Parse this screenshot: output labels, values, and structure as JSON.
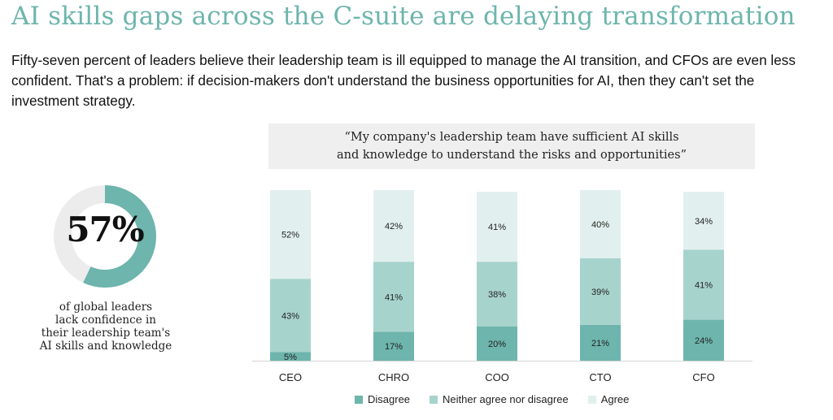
{
  "title": "AI skills gaps across the C-suite are delaying transformation",
  "intro": "Fifty-seven percent of leaders believe their leadership team is ill equipped to manage the AI transition, and CFOs are even less confident. That's a problem: if decision-makers don't understand the business opportunities for AI, then they can't set the investment strategy.",
  "quote": {
    "line1": "“My company's leadership team have sufficient AI skills",
    "line2": "and knowledge to understand the risks and opportunities”"
  },
  "stat": {
    "value": 57,
    "label": "57%",
    "caption": [
      "of global leaders",
      "lack confidence in",
      "their leadership team's",
      "AI skills and knowledge"
    ],
    "colors": {
      "fill": "#6db5ad",
      "track": "#ececec"
    }
  },
  "chart_data": {
    "type": "bar",
    "stacked": true,
    "categories": [
      "CEO",
      "CHRO",
      "COO",
      "CTO",
      "CFO"
    ],
    "series": [
      {
        "name": "Disagree",
        "values": [
          5,
          17,
          20,
          21,
          24
        ],
        "color": "#6db5ad"
      },
      {
        "name": "Neither agree nor disagree",
        "values": [
          43,
          41,
          38,
          39,
          41
        ],
        "color": "#a7d3cd"
      },
      {
        "name": "Agree",
        "values": [
          52,
          42,
          41,
          40,
          34
        ],
        "color": "#e1f0ee"
      }
    ],
    "value_suffix": "%",
    "ylim": [
      0,
      100
    ],
    "legend": "bottom",
    "grid": false
  }
}
